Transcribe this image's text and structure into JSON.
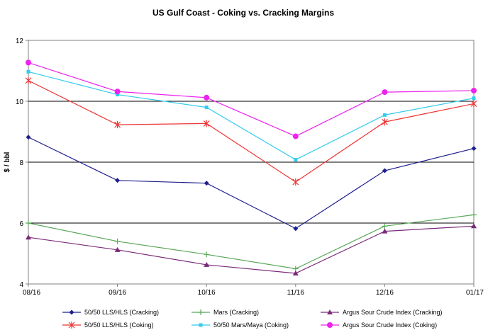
{
  "chart_data": {
    "type": "line",
    "title": "US Gulf Coast - Coking vs. Cracking Margins",
    "ylabel": "$ / bbl",
    "xlabel": "",
    "categories": [
      "08/16",
      "09/16",
      "10/16",
      "11/16",
      "12/16",
      "01/17"
    ],
    "ylim": [
      4,
      12
    ],
    "yticks": [
      4,
      6,
      8,
      10,
      12
    ],
    "gridlines_y": [
      6,
      8,
      10
    ],
    "legend_position": "bottom",
    "series": [
      {
        "name": "50/50 LLS/HLS (Cracking)",
        "color": "#1f1f8f",
        "marker": "diamond",
        "values": [
          8.82,
          7.4,
          7.31,
          5.82,
          7.72,
          8.45
        ]
      },
      {
        "name": "Mars (Cracking)",
        "color": "#5aa85a",
        "marker": "plus",
        "values": [
          6.0,
          5.4,
          4.97,
          4.5,
          5.9,
          6.27
        ]
      },
      {
        "name": "Argus Sour Crude Index (Cracking)",
        "color": "#7a2a7a",
        "marker": "triangle",
        "values": [
          5.53,
          5.12,
          4.63,
          4.35,
          5.73,
          5.9
        ]
      },
      {
        "name": "50/50 LLS/HLS (Coking)",
        "color": "#ee3333",
        "marker": "star",
        "values": [
          10.68,
          9.23,
          9.27,
          7.35,
          9.32,
          9.92
        ]
      },
      {
        "name": "50/50 Mars/Maya (Coking)",
        "color": "#33ccee",
        "marker": "square",
        "values": [
          10.97,
          10.22,
          9.8,
          8.08,
          9.55,
          10.1
        ]
      },
      {
        "name": "Argus Sour Crude Index (Coking)",
        "color": "#ee22ee",
        "marker": "circle",
        "values": [
          11.27,
          10.32,
          10.12,
          8.85,
          10.3,
          10.35
        ]
      }
    ]
  }
}
